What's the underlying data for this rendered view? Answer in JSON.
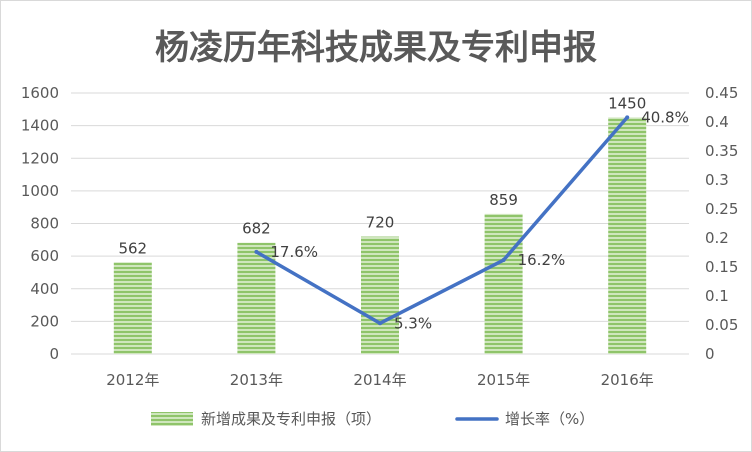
{
  "chart_data": {
    "type": "bar",
    "title": "杨凌历年科技成果及专利申报",
    "categories": [
      "2012年",
      "2013年",
      "2014年",
      "2015年",
      "2016年"
    ],
    "series": [
      {
        "name": "新增成果及专利申报（项）",
        "type": "bar",
        "axis": "left",
        "values": [
          562,
          682,
          720,
          859,
          1450
        ],
        "labels": [
          "562",
          "682",
          "720",
          "859",
          "1450"
        ],
        "color": "#70ad47"
      },
      {
        "name": "增长率（%）",
        "type": "line",
        "axis": "right",
        "x": [
          "2013年",
          "2014年",
          "2015年",
          "2016年"
        ],
        "values": [
          0.176,
          0.053,
          0.162,
          0.408
        ],
        "labels": [
          "17.6%",
          "5.3%",
          "16.2%",
          "40.8%"
        ],
        "color": "#4472c4"
      }
    ],
    "y_left": {
      "min": 0,
      "max": 1600,
      "ticks": [
        "0",
        "200",
        "400",
        "600",
        "800",
        "1000",
        "1200",
        "1400",
        "1600"
      ]
    },
    "y_right": {
      "min": 0,
      "max": 0.45,
      "ticks": [
        "0",
        "0.05",
        "0.1",
        "0.15",
        "0.2",
        "0.25",
        "0.3",
        "0.35",
        "0.4",
        "0.45"
      ]
    },
    "grid": true,
    "legend_position": "bottom",
    "colors": {
      "bar": "#70ad47",
      "line": "#4472c4",
      "grid": "#d9d9d9",
      "text": "#595959"
    }
  }
}
